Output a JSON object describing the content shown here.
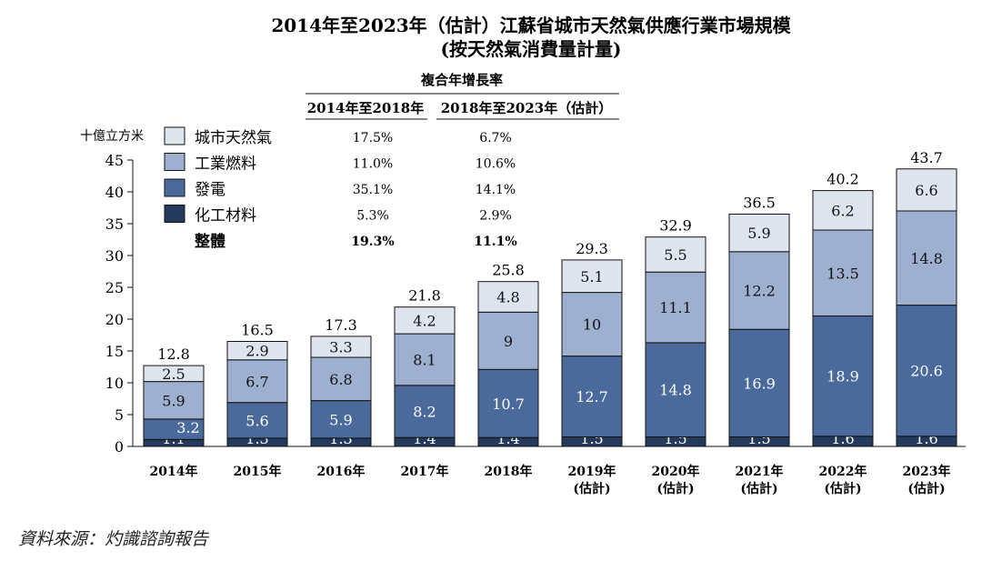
{
  "chart_data": {
    "type": "bar",
    "stacked": true,
    "title": "2014年至2023年（估計）江蘇省城市天然氣供應行業市場規模",
    "subtitle": "(按天然氣消費量計量)",
    "ylabel": "十億立方米",
    "ylim": [
      0,
      45
    ],
    "yticks": [
      0,
      5,
      10,
      15,
      20,
      25,
      30,
      35,
      40,
      45
    ],
    "categories": [
      [
        "2014年"
      ],
      [
        "2015年"
      ],
      [
        "2016年"
      ],
      [
        "2017年"
      ],
      [
        "2018年"
      ],
      [
        "2019年",
        "(估計)"
      ],
      [
        "2020年",
        "(估計)"
      ],
      [
        "2021年",
        "(估計)"
      ],
      [
        "2022年",
        "(估計)"
      ],
      [
        "2023年",
        "(估計)"
      ]
    ],
    "series": [
      {
        "name": "化工材料",
        "color": "#243a5c",
        "values": [
          1.1,
          1.3,
          1.3,
          1.4,
          1.4,
          1.5,
          1.5,
          1.5,
          1.6,
          1.6
        ]
      },
      {
        "name": "發電",
        "color": "#4a6a9c",
        "values": [
          3.2,
          5.6,
          5.9,
          8.2,
          10.7,
          12.7,
          14.8,
          16.9,
          18.9,
          20.6
        ]
      },
      {
        "name": "工業燃料",
        "color": "#9eb0cf",
        "values": [
          5.9,
          6.7,
          6.8,
          8.1,
          9.0,
          10.0,
          11.1,
          12.2,
          13.5,
          14.8
        ]
      },
      {
        "name": "城市天然氣",
        "color": "#dfe5ef",
        "values": [
          2.5,
          2.9,
          3.3,
          4.2,
          4.8,
          5.1,
          5.5,
          5.9,
          6.2,
          6.6
        ]
      }
    ],
    "totals": [
      12.8,
      16.5,
      17.3,
      21.8,
      25.8,
      29.3,
      32.9,
      36.5,
      40.2,
      43.7
    ],
    "cagr_table": {
      "header": "複合年增長率",
      "columns": [
        "2014年至2018年",
        "2018年至2023年（估計）"
      ],
      "rows": [
        {
          "label": "城市天然氣",
          "values": [
            "17.5%",
            "6.7%"
          ]
        },
        {
          "label": "工業燃料",
          "values": [
            "11.0%",
            "10.6%"
          ]
        },
        {
          "label": "發電",
          "values": [
            "35.1%",
            "14.1%"
          ]
        },
        {
          "label": "化工材料",
          "values": [
            "5.3%",
            "2.9%"
          ]
        },
        {
          "label": "整體",
          "values": [
            "19.3%",
            "11.1%"
          ],
          "bold": true
        }
      ]
    }
  },
  "source": "資料來源：灼識諮詢報告"
}
